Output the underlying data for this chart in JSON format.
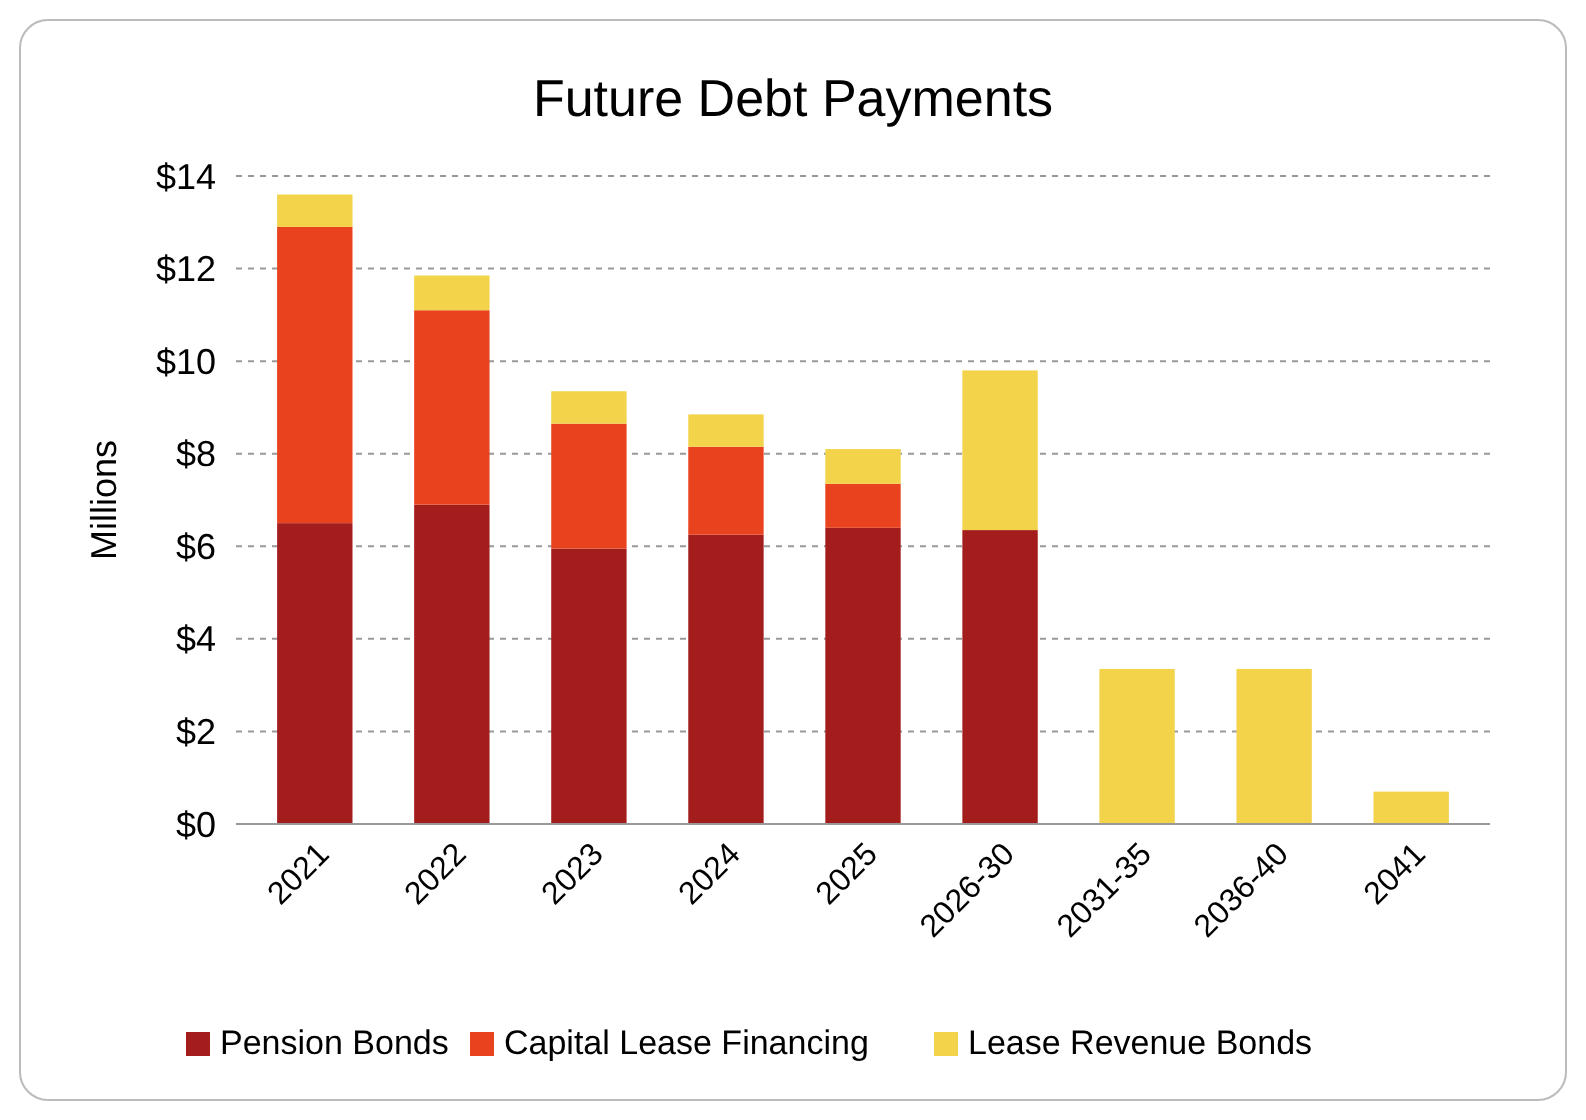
{
  "chart_data": {
    "type": "bar",
    "title": "Future Debt Payments",
    "ylabel": "Millions",
    "categories": [
      "2021",
      "2022",
      "2023",
      "2024",
      "2025",
      "2026-30",
      "2031-35",
      "2036-40",
      "2041"
    ],
    "stacked": true,
    "series": [
      {
        "name": "Pension Bonds",
        "color": "#a31d1d",
        "values": [
          6.5,
          6.9,
          5.95,
          6.25,
          6.4,
          6.35,
          null,
          null,
          null
        ]
      },
      {
        "name": "Capital Lease Financing",
        "color": "#e8431e",
        "values": [
          6.4,
          4.2,
          2.7,
          1.9,
          0.95,
          null,
          null,
          null,
          null
        ]
      },
      {
        "name": "Lease Revenue Bonds",
        "color": "#f3d34a",
        "values": [
          0.7,
          0.75,
          0.7,
          0.7,
          0.75,
          3.45,
          3.35,
          3.35,
          0.7
        ]
      }
    ],
    "ylim": [
      0,
      14
    ],
    "yticks": [
      {
        "value": 0,
        "label": "$0"
      },
      {
        "value": 2,
        "label": "$2"
      },
      {
        "value": 4,
        "label": "$4"
      },
      {
        "value": 6,
        "label": "$6"
      },
      {
        "value": 8,
        "label": "$8"
      },
      {
        "value": 10,
        "label": "$10"
      },
      {
        "value": 12,
        "label": "$12"
      },
      {
        "value": 14,
        "label": "$14"
      }
    ],
    "grid": "y",
    "legend": "bottom"
  }
}
